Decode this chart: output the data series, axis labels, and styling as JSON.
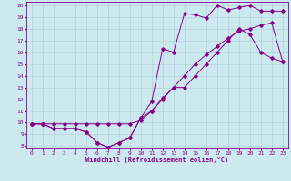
{
  "xlabel": "Windchill (Refroidissement éolien,°C)",
  "bg_color": "#cce9f0",
  "grid_color": "#b0ccd4",
  "line_color": "#880088",
  "xlim": [
    -0.5,
    23.5
  ],
  "ylim": [
    7.8,
    20.3
  ],
  "xticks": [
    0,
    1,
    2,
    3,
    4,
    5,
    6,
    7,
    8,
    9,
    10,
    11,
    12,
    13,
    14,
    15,
    16,
    17,
    18,
    19,
    20,
    21,
    22,
    23
  ],
  "yticks": [
    8,
    9,
    10,
    11,
    12,
    13,
    14,
    15,
    16,
    17,
    18,
    19,
    20
  ],
  "line1_x": [
    0,
    1,
    2,
    3,
    4,
    5,
    6,
    7,
    8,
    9,
    10,
    11,
    12,
    13,
    14,
    15,
    16,
    17,
    18,
    19,
    20,
    21,
    22,
    23
  ],
  "line1_y": [
    9.9,
    9.9,
    9.5,
    9.5,
    9.5,
    9.2,
    8.3,
    7.9,
    8.3,
    8.7,
    10.4,
    11.8,
    16.3,
    16.0,
    19.3,
    19.2,
    18.9,
    20.0,
    19.6,
    19.8,
    20.0,
    19.5,
    19.5,
    19.5
  ],
  "line2_x": [
    0,
    1,
    2,
    3,
    4,
    5,
    6,
    7,
    8,
    9,
    10,
    11,
    12,
    13,
    14,
    15,
    16,
    17,
    18,
    19,
    20,
    21,
    22,
    23
  ],
  "line2_y": [
    9.9,
    9.9,
    9.9,
    9.9,
    9.9,
    9.9,
    9.9,
    9.9,
    9.9,
    9.9,
    10.2,
    11.0,
    12.0,
    13.0,
    14.0,
    15.0,
    15.8,
    16.5,
    17.2,
    17.8,
    18.0,
    18.3,
    18.5,
    15.2
  ],
  "line3_x": [
    0,
    1,
    2,
    3,
    4,
    5,
    6,
    7,
    8,
    9,
    10,
    11,
    12,
    13,
    14,
    15,
    16,
    17,
    18,
    19,
    20,
    21,
    22,
    23
  ],
  "line3_y": [
    9.9,
    9.9,
    9.5,
    9.5,
    9.5,
    9.2,
    8.3,
    7.9,
    8.3,
    8.7,
    10.4,
    11.0,
    12.1,
    13.0,
    13.0,
    14.0,
    15.0,
    16.0,
    17.0,
    18.0,
    17.5,
    16.0,
    15.5,
    15.2
  ]
}
